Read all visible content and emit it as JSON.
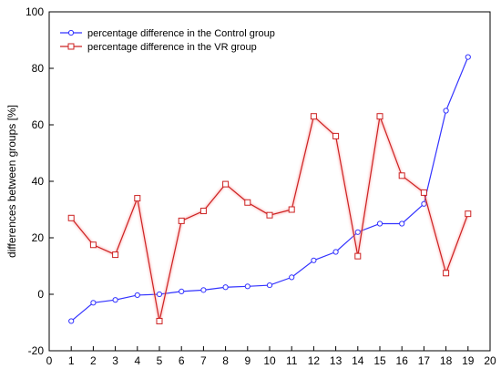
{
  "chart_data": {
    "type": "line",
    "ylabel": "differences between groups [%]",
    "xlim": [
      0,
      20
    ],
    "ylim": [
      -20,
      100
    ],
    "x_ticks": [
      0,
      1,
      2,
      3,
      4,
      5,
      6,
      7,
      8,
      9,
      10,
      11,
      12,
      13,
      14,
      15,
      16,
      17,
      18,
      19,
      20
    ],
    "y_ticks": [
      -20,
      0,
      20,
      40,
      60,
      80,
      100
    ],
    "grid": false,
    "legend_position": "top-left",
    "x": [
      1,
      2,
      3,
      4,
      5,
      6,
      7,
      8,
      9,
      10,
      11,
      12,
      13,
      14,
      15,
      16,
      17,
      18,
      19
    ],
    "series": [
      {
        "name": "percentage difference in the Control group",
        "color": "#3333ff",
        "marker": "diamond",
        "values": [
          -9.5,
          -3,
          -2,
          -0.3,
          0,
          1,
          1.5,
          2.5,
          2.8,
          3.2,
          6,
          12,
          15,
          22,
          25,
          25,
          32,
          65,
          84
        ]
      },
      {
        "name": "percentage difference in the VR group",
        "color": "#cc2222",
        "marker": "square",
        "values": [
          27,
          17.5,
          14,
          34,
          -9.5,
          26,
          29.5,
          39,
          32.5,
          28,
          30,
          63,
          56,
          13.5,
          63,
          42,
          36,
          7.5,
          28.5
        ]
      }
    ]
  }
}
